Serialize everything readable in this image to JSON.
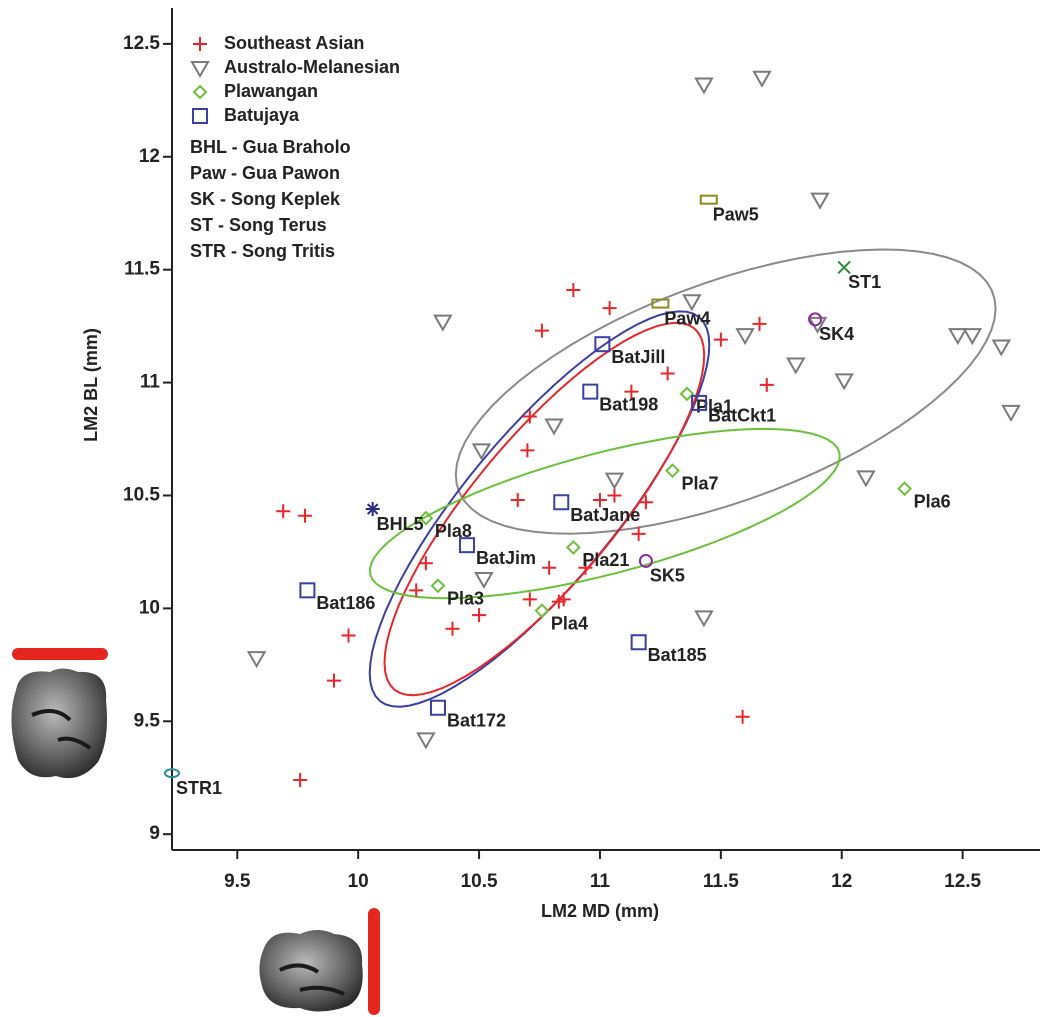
{
  "chart_data": {
    "type": "scatter",
    "xlabel": "LM2 MD (mm)",
    "ylabel": "LM2  BL (mm)",
    "xlim": [
      9.23,
      12.82
    ],
    "ylim": [
      8.93,
      12.65
    ],
    "xticks": [
      9.5,
      10,
      10.5,
      11,
      11.5,
      12,
      12.5
    ],
    "yticks": [
      9,
      9.5,
      10,
      10.5,
      11,
      11.5,
      12,
      12.5
    ],
    "series": [
      {
        "name": "Southeast Asian",
        "marker": "plus",
        "color": "#e8262a",
        "x": [
          10.89,
          11.04,
          10.76,
          11.66,
          11.5,
          11.13,
          11.28,
          11.69,
          10.71,
          10.7,
          10.66,
          11.0,
          11.06,
          11.19,
          11.16,
          9.69,
          9.78,
          10.28,
          10.24,
          10.79,
          10.94,
          10.71,
          10.5,
          10.83,
          10.85,
          10.39,
          9.96,
          9.9,
          11.59,
          9.76
        ],
        "values": [
          11.41,
          11.33,
          11.23,
          11.26,
          11.19,
          10.96,
          11.04,
          10.99,
          10.85,
          10.7,
          10.48,
          10.48,
          10.5,
          10.47,
          10.33,
          10.43,
          10.41,
          10.2,
          10.08,
          10.18,
          10.18,
          10.04,
          9.97,
          10.03,
          10.04,
          9.91,
          9.88,
          9.68,
          9.52,
          9.24
        ]
      },
      {
        "name": "Australo-Melanesian",
        "marker": "triangle-down",
        "color": "#7a7a7a",
        "x": [
          11.43,
          11.67,
          11.91,
          10.35,
          11.38,
          11.6,
          11.9,
          11.81,
          12.01,
          12.48,
          12.54,
          12.66,
          12.7,
          12.1,
          10.81,
          10.51,
          11.06,
          10.52,
          11.43,
          9.58,
          10.28
        ],
        "values": [
          12.32,
          12.35,
          11.81,
          11.27,
          11.36,
          11.21,
          11.26,
          11.08,
          11.01,
          11.21,
          11.21,
          11.16,
          10.87,
          10.58,
          10.81,
          10.7,
          10.57,
          10.13,
          9.96,
          9.78,
          9.42
        ]
      },
      {
        "name": "Plawangan",
        "marker": "diamond",
        "color": "#6cbf3c",
        "labels": [
          "Pla1",
          "Pla7",
          "Pla8",
          "Pla21",
          "Pla3",
          "Pla4",
          "Pla6"
        ],
        "x": [
          11.36,
          11.3,
          10.28,
          10.89,
          10.33,
          10.76,
          12.26
        ],
        "values": [
          10.95,
          10.61,
          10.4,
          10.27,
          10.1,
          9.99,
          10.53
        ]
      },
      {
        "name": "Batujaya",
        "marker": "square",
        "color": "#3a3fa0",
        "labels": [
          "BatJill",
          "Bat198",
          "BatCkt1",
          "BatJane",
          "BatJim",
          "Bat186",
          "Bat185",
          "Bat172"
        ],
        "x": [
          11.01,
          10.96,
          11.41,
          10.84,
          10.45,
          9.79,
          11.16,
          10.33
        ],
        "values": [
          11.17,
          10.96,
          10.91,
          10.47,
          10.28,
          10.08,
          9.85,
          9.56
        ]
      }
    ],
    "specimens": [
      {
        "label": "BHL5",
        "marker": "asterisk",
        "color": "#2a2a80",
        "x": 10.06,
        "y": 10.44
      },
      {
        "label": "Paw5",
        "marker": "rect",
        "color": "#8a8a20",
        "x": 11.45,
        "y": 11.81
      },
      {
        "label": "Paw4",
        "marker": "rect",
        "color": "#8a8a20",
        "x": 11.25,
        "y": 11.35
      },
      {
        "label": "ST1",
        "marker": "cross",
        "color": "#2a8a3a",
        "x": 12.01,
        "y": 11.51
      },
      {
        "label": "SK4",
        "marker": "circle",
        "color": "#8a2a9a",
        "x": 11.89,
        "y": 11.28
      },
      {
        "label": "SK5",
        "marker": "circle",
        "color": "#8a2a9a",
        "x": 11.19,
        "y": 10.21
      },
      {
        "label": "STR1",
        "marker": "ellipse",
        "color": "#2a8a9a",
        "x": 9.23,
        "y": 9.27
      }
    ],
    "ellipses": [
      {
        "group": "Australo-Melanesian",
        "color": "#8a8a8a",
        "center": [
          11.52,
          10.96
        ],
        "axis1": [
          1.1,
          0.45
        ],
        "axis2": [
          0.19,
          -0.44
        ]
      },
      {
        "group": "Batujaya",
        "color": "#3a3fa0",
        "center": [
          10.75,
          10.44
        ],
        "axis1": [
          0.66,
          0.85
        ],
        "axis2": [
          0.24,
          -0.21
        ]
      },
      {
        "group": "Southeast Asian",
        "color": "#e8262a",
        "center": [
          10.77,
          10.44
        ],
        "axis1": [
          0.62,
          0.8
        ],
        "axis2": [
          0.23,
          -0.2
        ]
      },
      {
        "group": "Plawangan",
        "color": "#6cbf3c",
        "center": [
          11.02,
          10.42
        ],
        "axis1": [
          0.97,
          0.27
        ],
        "axis2": [
          0.06,
          -0.26
        ]
      }
    ],
    "legend_notes": [
      "BHL - Gua Braholo",
      "Paw - Gua Pawon",
      "SK - Song Keplek",
      "ST - Song Terus",
      "STR - Song Tritis"
    ],
    "legend": "upper left"
  }
}
